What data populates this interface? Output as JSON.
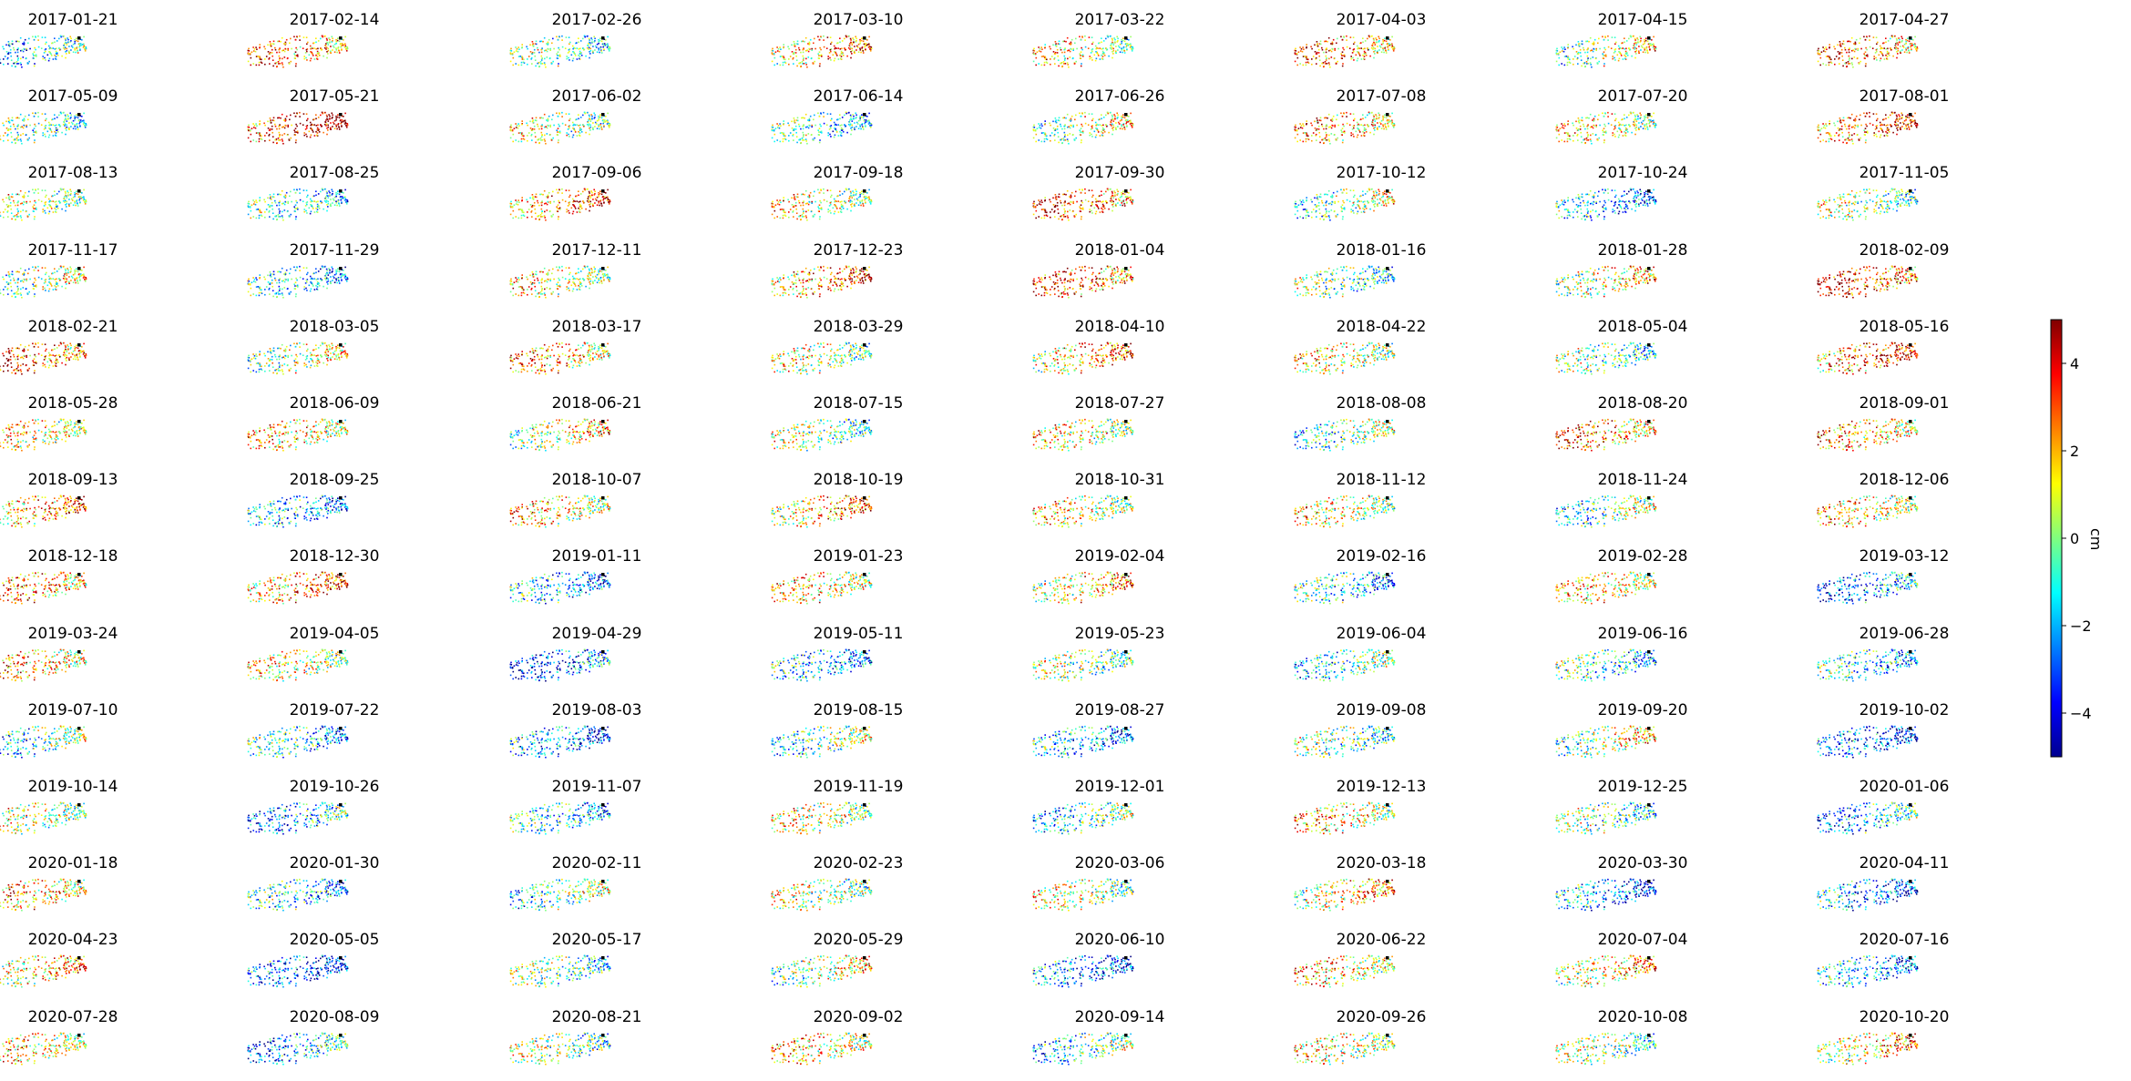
{
  "chart_data": {
    "type": "scatter",
    "panel_type": "small-multiples scatter maps",
    "colormap": "jet",
    "colorbar": {
      "label": "cm",
      "range": [
        -5,
        5
      ],
      "ticks": [
        4,
        2,
        0,
        -2,
        -4
      ],
      "tick_labels": [
        "4",
        "2",
        "0",
        "−2",
        "−4"
      ]
    },
    "reference_point_color": "#000000",
    "dates": [
      "2017-01-21",
      "2017-02-14",
      "2017-02-26",
      "2017-03-10",
      "2017-03-22",
      "2017-04-03",
      "2017-04-15",
      "2017-04-27",
      "2017-05-09",
      "2017-05-21",
      "2017-06-02",
      "2017-06-14",
      "2017-06-26",
      "2017-07-08",
      "2017-07-20",
      "2017-08-01",
      "2017-08-13",
      "2017-08-25",
      "2017-09-06",
      "2017-09-18",
      "2017-09-30",
      "2017-10-12",
      "2017-10-24",
      "2017-11-05",
      "2017-11-17",
      "2017-11-29",
      "2017-12-11",
      "2017-12-23",
      "2018-01-04",
      "2018-01-16",
      "2018-01-28",
      "2018-02-09",
      "2018-02-21",
      "2018-03-05",
      "2018-03-17",
      "2018-03-29",
      "2018-04-10",
      "2018-04-22",
      "2018-05-04",
      "2018-05-16",
      "2018-05-28",
      "2018-06-09",
      "2018-06-21",
      "2018-07-15",
      "2018-07-27",
      "2018-08-08",
      "2018-08-20",
      "2018-09-01",
      "2018-09-13",
      "2018-09-25",
      "2018-10-07",
      "2018-10-19",
      "2018-10-31",
      "2018-11-12",
      "2018-11-24",
      "2018-12-06",
      "2018-12-18",
      "2018-12-30",
      "2019-01-11",
      "2019-01-23",
      "2019-02-04",
      "2019-02-16",
      "2019-02-28",
      "2019-03-12",
      "2019-03-24",
      "2019-04-05",
      "2019-04-29",
      "2019-05-11",
      "2019-05-23",
      "2019-06-04",
      "2019-06-16",
      "2019-06-28",
      "2019-07-10",
      "2019-07-22",
      "2019-08-03",
      "2019-08-15",
      "2019-08-27",
      "2019-09-08",
      "2019-09-20",
      "2019-10-02",
      "2019-10-14",
      "2019-10-26",
      "2019-11-07",
      "2019-11-19",
      "2019-12-01",
      "2019-12-13",
      "2019-12-25",
      "2020-01-06",
      "2020-01-18",
      "2020-01-30",
      "2020-02-11",
      "2020-02-23",
      "2020-03-06",
      "2020-03-18",
      "2020-03-30",
      "2020-04-11",
      "2020-04-23",
      "2020-05-05",
      "2020-05-17",
      "2020-05-29",
      "2020-06-10",
      "2020-06-22",
      "2020-07-04",
      "2020-07-16",
      "2020-07-28",
      "2020-08-09",
      "2020-08-21",
      "2020-09-02",
      "2020-09-14",
      "2020-09-26",
      "2020-10-08",
      "2020-10-20"
    ],
    "mean_displacement_cm": [
      -1.5,
      2.5,
      -0.5,
      2.0,
      1.0,
      2.5,
      0.5,
      2.5,
      -0.5,
      4.0,
      0.5,
      -1.0,
      0.5,
      2.0,
      1.0,
      3.0,
      0.5,
      -1.0,
      2.5,
      1.0,
      3.0,
      0.0,
      -2.0,
      0.0,
      0.0,
      -1.5,
      1.0,
      2.5,
      3.0,
      -0.5,
      1.0,
      3.5,
      3.0,
      0.5,
      2.0,
      0.5,
      2.0,
      1.0,
      -0.5,
      3.0,
      1.0,
      1.5,
      1.0,
      0.0,
      1.0,
      -0.5,
      2.5,
      2.0,
      2.0,
      -2.0,
      1.5,
      2.0,
      1.0,
      1.0,
      -0.5,
      1.5,
      2.5,
      2.5,
      -2.0,
      1.5,
      1.5,
      -1.5,
      1.5,
      -2.5,
      2.0,
      1.0,
      -3.0,
      -2.0,
      0.0,
      -1.0,
      -1.0,
      -1.5,
      -1.0,
      -1.5,
      -2.5,
      -0.5,
      -2.0,
      -0.5,
      0.5,
      -3.0,
      0.5,
      -2.0,
      -1.5,
      0.5,
      -1.0,
      1.5,
      -0.5,
      -2.0,
      2.0,
      -1.5,
      -0.5,
      0.5,
      0.5,
      1.5,
      -2.5,
      -2.5,
      1.5,
      -3.0,
      -0.5,
      0.5,
      -2.5,
      1.5,
      1.5,
      -2.0,
      1.5,
      -2.0,
      0.0,
      1.5,
      -1.0,
      1.0,
      0.0,
      1.5
    ]
  }
}
